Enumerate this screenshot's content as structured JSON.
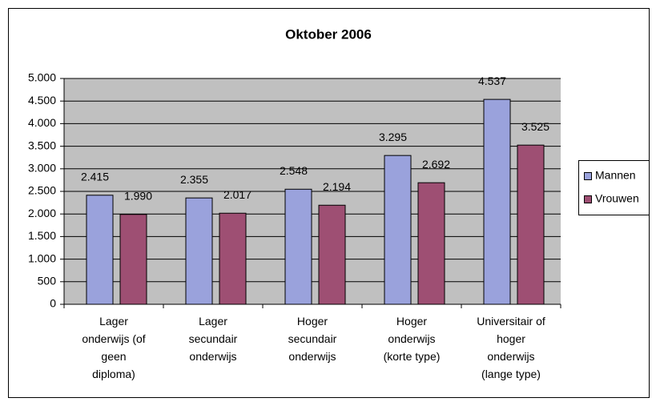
{
  "chart_data": {
    "type": "bar",
    "title": "Oktober 2006",
    "categories": [
      "Lager\nonderwijs (of\ngeen\ndiploma)",
      "Lager\nsecundair\nonderwijs",
      "Hoger\nsecundair\nonderwijs",
      "Hoger\nonderwijs\n(korte type)",
      "Universitair of\nhoger\nonderwijs\n(lange type)"
    ],
    "series": [
      {
        "name": "Mannen",
        "color": "#9aa2dc",
        "values": [
          2415,
          2355,
          2548,
          3295,
          4537
        ],
        "value_labels": [
          "2.415",
          "2.355",
          "2.548",
          "3.295",
          "4.537"
        ]
      },
      {
        "name": "Vrouwen",
        "color": "#9e4f73",
        "values": [
          1990,
          2017,
          2194,
          2692,
          3525
        ],
        "value_labels": [
          "1.990",
          "2.017",
          "2.194",
          "2.692",
          "3.525"
        ]
      }
    ],
    "ylim": [
      0,
      5000
    ],
    "yticks": [
      0,
      500,
      {
        "value": 1000,
        "label": "1.000"
      },
      {
        "value": 1500,
        "label": "1.500"
      },
      {
        "value": 2000,
        "label": "2.000"
      },
      {
        "value": 2500,
        "label": "2.500"
      },
      {
        "value": 3000,
        "label": "3.000"
      },
      {
        "value": 3500,
        "label": "3.500"
      },
      {
        "value": 4000,
        "label": "4.000"
      },
      {
        "value": 4500,
        "label": "4.500"
      },
      {
        "value": 5000,
        "label": "5.000"
      }
    ],
    "grid": true,
    "legend": "right"
  }
}
